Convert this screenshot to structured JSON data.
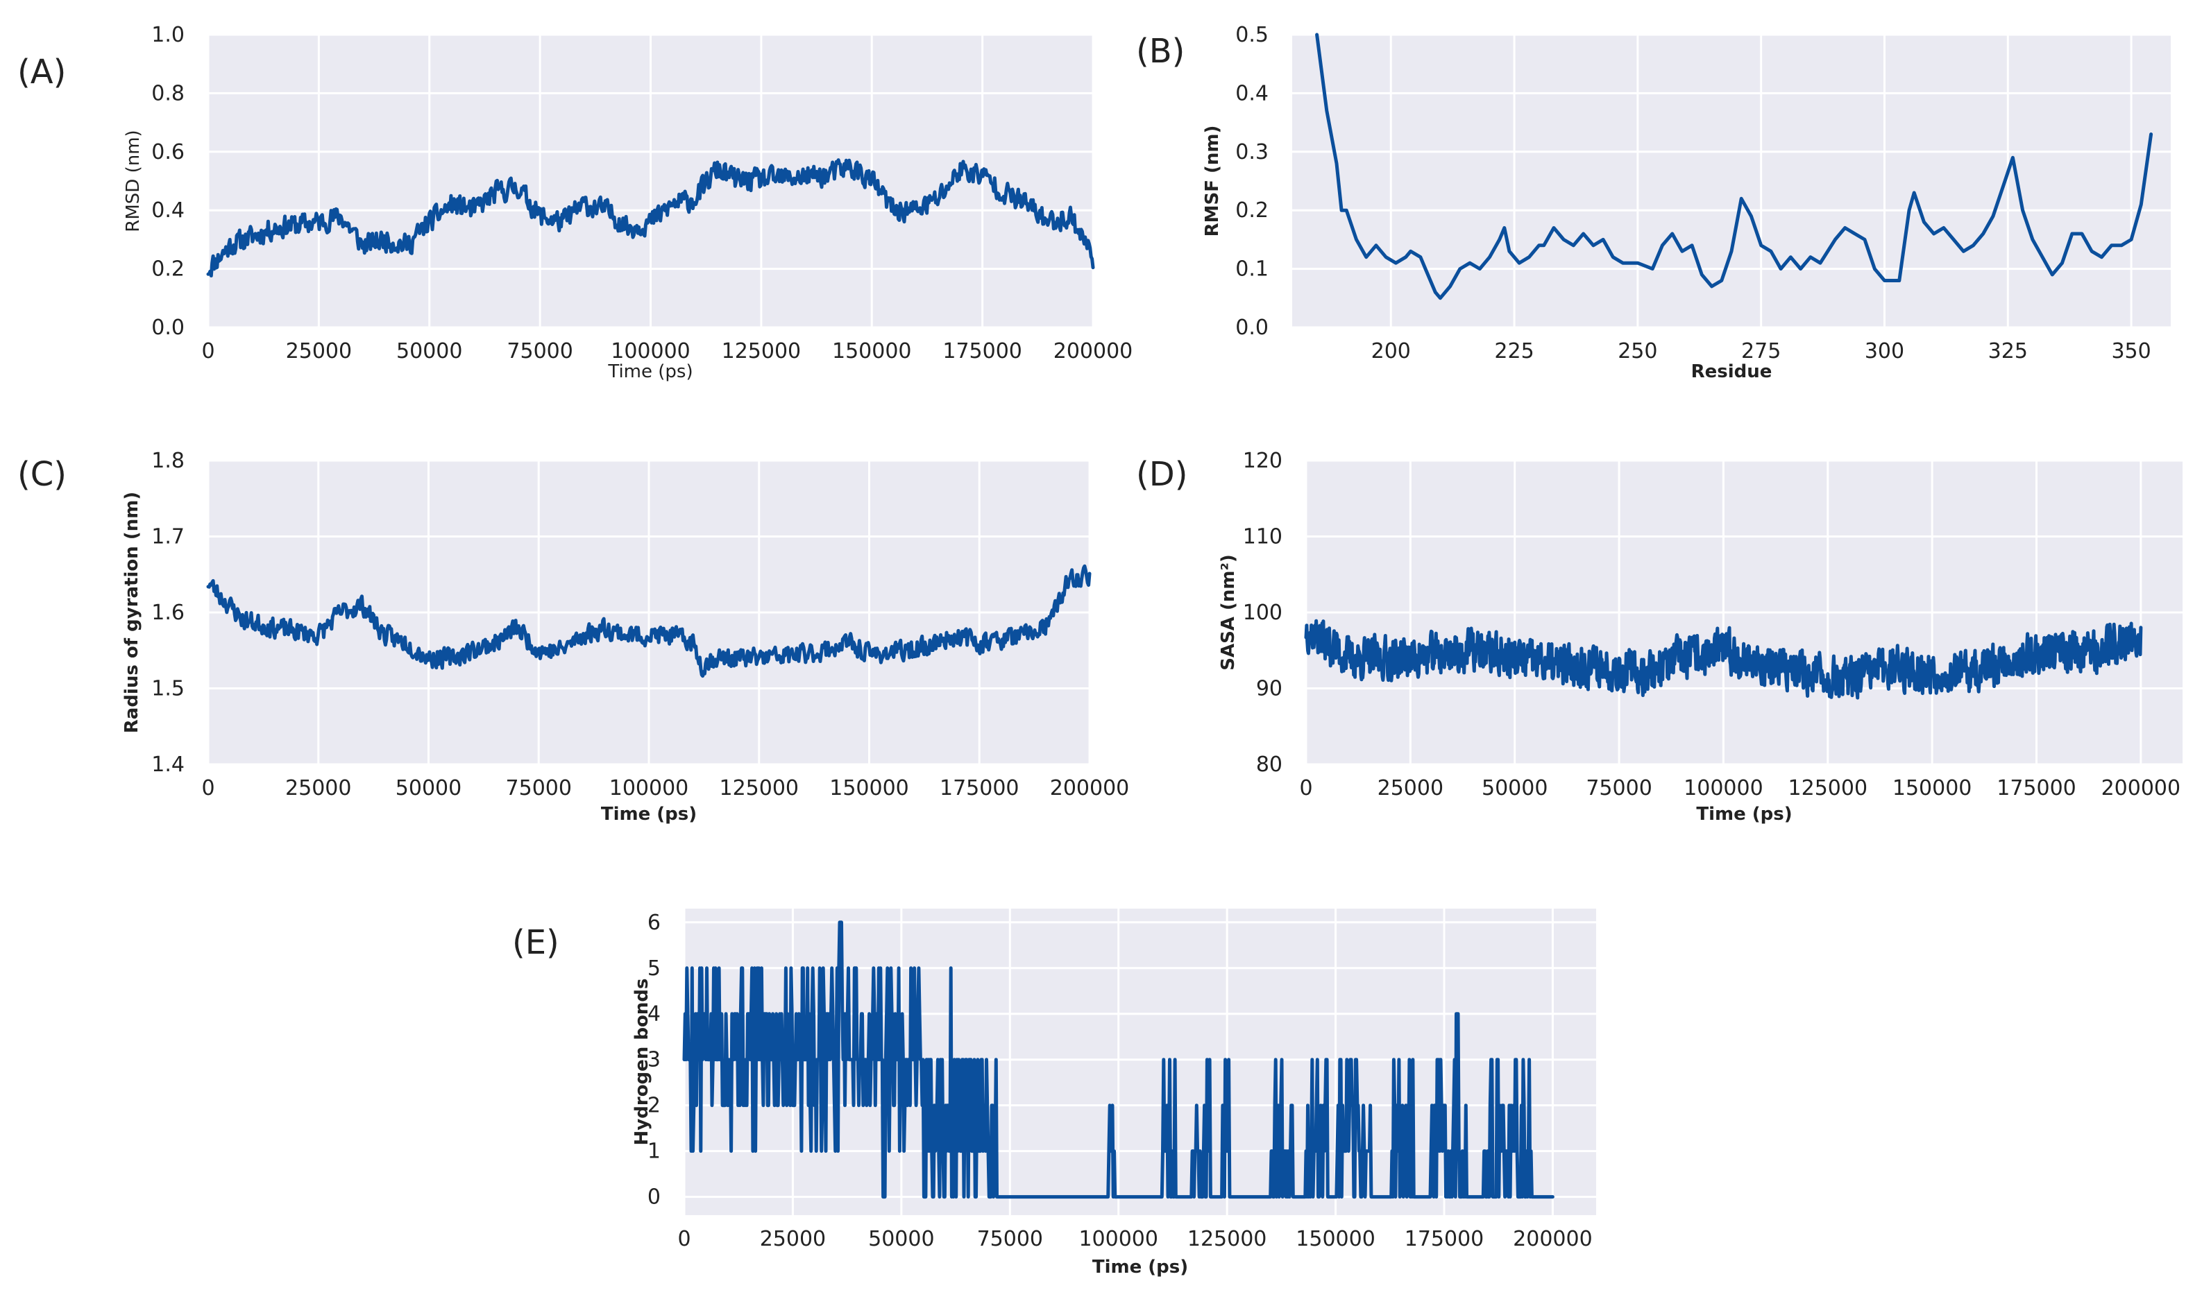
{
  "figure": {
    "line_color": "#0b4f9c",
    "plot_background": "#eaeaf2",
    "grid_color": "#ffffff"
  },
  "chart_data": [
    {
      "id": "A",
      "panel_label": "(A)",
      "type": "line",
      "xlabel": "Time (ps)",
      "ylabel": "RMSD (nm)",
      "label_weight": "normal",
      "xlim": [
        0,
        200000
      ],
      "ylim": [
        0.0,
        1.0
      ],
      "xticks": [
        0,
        25000,
        50000,
        75000,
        100000,
        125000,
        150000,
        175000,
        200000
      ],
      "yticks": [
        0.0,
        0.2,
        0.4,
        0.6,
        0.8,
        1.0
      ],
      "xtick_labels": [
        "0",
        "25000",
        "50000",
        "75000",
        "100000",
        "125000",
        "150000",
        "175000",
        "200000"
      ],
      "ytick_labels": [
        "0.0",
        "0.2",
        "0.4",
        "0.6",
        "0.8",
        "1.0"
      ],
      "gen": {
        "kind": "random",
        "seed": 11,
        "n": 900,
        "noise": 0.035,
        "anchors": [
          [
            0,
            0.2
          ],
          [
            5000,
            0.28
          ],
          [
            15000,
            0.34
          ],
          [
            25000,
            0.36
          ],
          [
            30000,
            0.38
          ],
          [
            35000,
            0.28
          ],
          [
            40000,
            0.3
          ],
          [
            45000,
            0.28
          ],
          [
            50000,
            0.36
          ],
          [
            55000,
            0.42
          ],
          [
            60000,
            0.4
          ],
          [
            65000,
            0.46
          ],
          [
            70000,
            0.48
          ],
          [
            75000,
            0.38
          ],
          [
            80000,
            0.36
          ],
          [
            85000,
            0.42
          ],
          [
            90000,
            0.4
          ],
          [
            95000,
            0.34
          ],
          [
            100000,
            0.36
          ],
          [
            105000,
            0.42
          ],
          [
            110000,
            0.44
          ],
          [
            115000,
            0.54
          ],
          [
            120000,
            0.5
          ],
          [
            130000,
            0.51
          ],
          [
            140000,
            0.52
          ],
          [
            145000,
            0.55
          ],
          [
            150000,
            0.5
          ],
          [
            155000,
            0.4
          ],
          [
            160000,
            0.4
          ],
          [
            165000,
            0.44
          ],
          [
            170000,
            0.54
          ],
          [
            175000,
            0.52
          ],
          [
            180000,
            0.46
          ],
          [
            185000,
            0.42
          ],
          [
            190000,
            0.36
          ],
          [
            195000,
            0.38
          ],
          [
            198000,
            0.3
          ],
          [
            200000,
            0.24
          ]
        ]
      }
    },
    {
      "id": "B",
      "panel_label": "(B)",
      "type": "line",
      "xlabel": "Residue",
      "ylabel": "RMSF (nm)",
      "label_weight": "bold",
      "xlim": [
        180,
        358
      ],
      "ylim": [
        0.0,
        0.5
      ],
      "xticks": [
        200,
        225,
        250,
        275,
        300,
        325,
        350
      ],
      "yticks": [
        0.0,
        0.1,
        0.2,
        0.3,
        0.4,
        0.5
      ],
      "xtick_labels": [
        "200",
        "225",
        "250",
        "275",
        "300",
        "325",
        "350"
      ],
      "ytick_labels": [
        "0.0",
        "0.1",
        "0.2",
        "0.3",
        "0.4",
        "0.5"
      ],
      "gen": {
        "kind": "interp",
        "points": [
          [
            185,
            0.5
          ],
          [
            187,
            0.37
          ],
          [
            189,
            0.28
          ],
          [
            190,
            0.2
          ],
          [
            191,
            0.2
          ],
          [
            193,
            0.15
          ],
          [
            195,
            0.12
          ],
          [
            197,
            0.14
          ],
          [
            199,
            0.12
          ],
          [
            201,
            0.11
          ],
          [
            203,
            0.12
          ],
          [
            204,
            0.13
          ],
          [
            206,
            0.12
          ],
          [
            207,
            0.1
          ],
          [
            209,
            0.06
          ],
          [
            210,
            0.05
          ],
          [
            212,
            0.07
          ],
          [
            214,
            0.1
          ],
          [
            216,
            0.11
          ],
          [
            218,
            0.1
          ],
          [
            220,
            0.12
          ],
          [
            222,
            0.15
          ],
          [
            223,
            0.17
          ],
          [
            224,
            0.13
          ],
          [
            226,
            0.11
          ],
          [
            228,
            0.12
          ],
          [
            230,
            0.14
          ],
          [
            231,
            0.14
          ],
          [
            233,
            0.17
          ],
          [
            235,
            0.15
          ],
          [
            237,
            0.14
          ],
          [
            239,
            0.16
          ],
          [
            241,
            0.14
          ],
          [
            243,
            0.15
          ],
          [
            245,
            0.12
          ],
          [
            247,
            0.11
          ],
          [
            250,
            0.11
          ],
          [
            253,
            0.1
          ],
          [
            255,
            0.14
          ],
          [
            257,
            0.16
          ],
          [
            259,
            0.13
          ],
          [
            261,
            0.14
          ],
          [
            263,
            0.09
          ],
          [
            265,
            0.07
          ],
          [
            267,
            0.08
          ],
          [
            269,
            0.13
          ],
          [
            271,
            0.22
          ],
          [
            273,
            0.19
          ],
          [
            275,
            0.14
          ],
          [
            277,
            0.13
          ],
          [
            279,
            0.1
          ],
          [
            281,
            0.12
          ],
          [
            283,
            0.1
          ],
          [
            285,
            0.12
          ],
          [
            287,
            0.11
          ],
          [
            290,
            0.15
          ],
          [
            292,
            0.17
          ],
          [
            294,
            0.16
          ],
          [
            296,
            0.15
          ],
          [
            298,
            0.1
          ],
          [
            300,
            0.08
          ],
          [
            303,
            0.08
          ],
          [
            305,
            0.2
          ],
          [
            306,
            0.23
          ],
          [
            308,
            0.18
          ],
          [
            310,
            0.16
          ],
          [
            312,
            0.17
          ],
          [
            314,
            0.15
          ],
          [
            316,
            0.13
          ],
          [
            318,
            0.14
          ],
          [
            320,
            0.16
          ],
          [
            322,
            0.19
          ],
          [
            324,
            0.24
          ],
          [
            326,
            0.29
          ],
          [
            328,
            0.2
          ],
          [
            330,
            0.15
          ],
          [
            332,
            0.12
          ],
          [
            334,
            0.09
          ],
          [
            336,
            0.11
          ],
          [
            338,
            0.16
          ],
          [
            340,
            0.16
          ],
          [
            342,
            0.13
          ],
          [
            344,
            0.12
          ],
          [
            346,
            0.14
          ],
          [
            348,
            0.14
          ],
          [
            350,
            0.15
          ],
          [
            352,
            0.21
          ],
          [
            354,
            0.33
          ]
        ]
      }
    },
    {
      "id": "C",
      "panel_label": "(C)",
      "type": "line",
      "xlabel": "Time (ps)",
      "ylabel": "Radius of gyration (nm)",
      "label_weight": "bold",
      "xlim": [
        0,
        200000
      ],
      "ylim": [
        1.4,
        1.8
      ],
      "xticks": [
        0,
        25000,
        50000,
        75000,
        100000,
        125000,
        150000,
        175000,
        200000
      ],
      "yticks": [
        1.4,
        1.5,
        1.6,
        1.7,
        1.8
      ],
      "xtick_labels": [
        "0",
        "25000",
        "50000",
        "75000",
        "100000",
        "125000",
        "150000",
        "175000",
        "200000"
      ],
      "ytick_labels": [
        "1.4",
        "1.5",
        "1.6",
        "1.7",
        "1.8"
      ],
      "gen": {
        "kind": "random",
        "seed": 23,
        "n": 900,
        "noise": 0.012,
        "anchors": [
          [
            0,
            1.64
          ],
          [
            3000,
            1.62
          ],
          [
            8000,
            1.59
          ],
          [
            15000,
            1.58
          ],
          [
            25000,
            1.57
          ],
          [
            30000,
            1.6
          ],
          [
            35000,
            1.61
          ],
          [
            40000,
            1.57
          ],
          [
            45000,
            1.56
          ],
          [
            50000,
            1.54
          ],
          [
            55000,
            1.54
          ],
          [
            60000,
            1.55
          ],
          [
            65000,
            1.56
          ],
          [
            70000,
            1.58
          ],
          [
            75000,
            1.55
          ],
          [
            80000,
            1.55
          ],
          [
            85000,
            1.57
          ],
          [
            90000,
            1.58
          ],
          [
            95000,
            1.57
          ],
          [
            100000,
            1.57
          ],
          [
            105000,
            1.57
          ],
          [
            110000,
            1.56
          ],
          [
            112000,
            1.53
          ],
          [
            115000,
            1.54
          ],
          [
            125000,
            1.54
          ],
          [
            135000,
            1.545
          ],
          [
            140000,
            1.55
          ],
          [
            145000,
            1.56
          ],
          [
            150000,
            1.545
          ],
          [
            160000,
            1.55
          ],
          [
            165000,
            1.56
          ],
          [
            170000,
            1.57
          ],
          [
            175000,
            1.56
          ],
          [
            185000,
            1.57
          ],
          [
            190000,
            1.58
          ],
          [
            192000,
            1.6
          ],
          [
            195000,
            1.64
          ],
          [
            200000,
            1.65
          ]
        ]
      }
    },
    {
      "id": "D",
      "panel_label": "(D)",
      "type": "line",
      "xlabel": "Time (ps)",
      "ylabel": "SASA (nm²)",
      "label_weight": "bold",
      "xlim": [
        0,
        210000
      ],
      "ylim": [
        80,
        120
      ],
      "xticks": [
        0,
        25000,
        50000,
        75000,
        100000,
        125000,
        150000,
        175000,
        200000
      ],
      "yticks": [
        80,
        90,
        100,
        110,
        120
      ],
      "xtick_labels": [
        "0",
        "25000",
        "50000",
        "75000",
        "100000",
        "125000",
        "150000",
        "175000",
        "200000"
      ],
      "ytick_labels": [
        "80",
        "90",
        "100",
        "110",
        "120"
      ],
      "gen": {
        "kind": "random",
        "seed": 37,
        "n": 1400,
        "noise": 2.6,
        "anchors": [
          [
            0,
            98
          ],
          [
            5000,
            96
          ],
          [
            10000,
            94
          ],
          [
            25000,
            94
          ],
          [
            40000,
            95
          ],
          [
            50000,
            94
          ],
          [
            60000,
            93
          ],
          [
            70000,
            93
          ],
          [
            80000,
            92
          ],
          [
            90000,
            94
          ],
          [
            100000,
            95
          ],
          [
            110000,
            93
          ],
          [
            120000,
            92
          ],
          [
            130000,
            91
          ],
          [
            140000,
            93
          ],
          [
            150000,
            92
          ],
          [
            160000,
            92
          ],
          [
            170000,
            94
          ],
          [
            180000,
            95
          ],
          [
            190000,
            95
          ],
          [
            195000,
            96
          ],
          [
            200000,
            97
          ]
        ]
      }
    },
    {
      "id": "E",
      "panel_label": "(E)",
      "type": "line",
      "xlabel": "Time (ps)",
      "ylabel": "Hydrogen bonds",
      "label_weight": "bold",
      "xlim": [
        0,
        210000
      ],
      "ylim": [
        -0.4,
        6.3
      ],
      "xticks": [
        0,
        25000,
        50000,
        75000,
        100000,
        125000,
        150000,
        175000,
        200000
      ],
      "yticks": [
        0,
        1,
        2,
        3,
        4,
        5,
        6
      ],
      "xtick_labels": [
        "0",
        "25000",
        "50000",
        "75000",
        "100000",
        "125000",
        "150000",
        "175000",
        "200000"
      ],
      "ytick_labels": [
        "0",
        "1",
        "2",
        "3",
        "4",
        "5",
        "6"
      ],
      "gen": {
        "kind": "hbonds",
        "seed": 5,
        "n": 1000
      }
    }
  ]
}
